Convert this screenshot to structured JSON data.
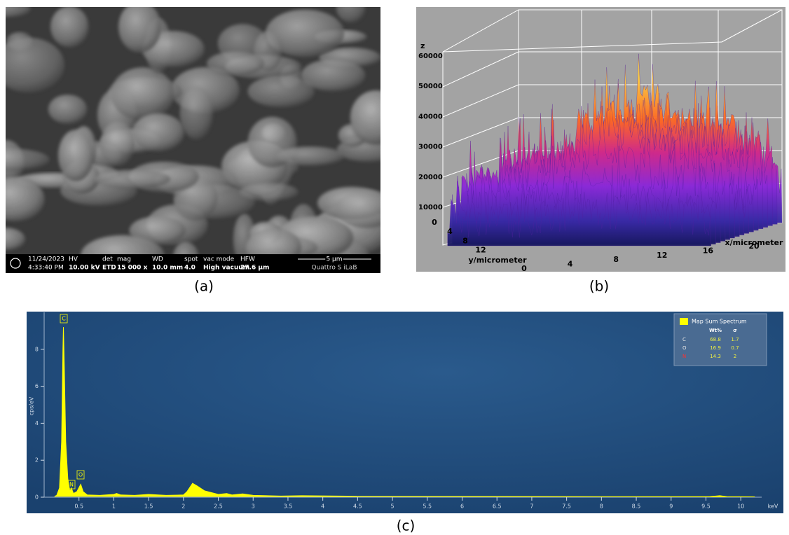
{
  "panel_labels": [
    "(a)",
    "(b)",
    "(c)"
  ],
  "sem": {
    "date": "11/24/2023",
    "time": "4:33:40 PM",
    "fields": [
      {
        "label": "HV",
        "value": "10.00 kV"
      },
      {
        "label": "det",
        "value": "ETD"
      },
      {
        "label": "mag",
        "value": "15 000 x"
      },
      {
        "label": "WD",
        "value": "10.0 mm"
      },
      {
        "label": "spot",
        "value": "4.0"
      },
      {
        "label": "vac mode",
        "value": "High vacuum"
      },
      {
        "label": "HFW",
        "value": "27.6 µm"
      }
    ],
    "scale_bar": "5 µm",
    "instrument": "Quattro S iLaB"
  },
  "surface": {
    "z_label": "z",
    "zticks": [
      10000,
      20000,
      30000,
      40000,
      50000,
      60000
    ],
    "y_label": "y/micrometer",
    "yticks": [
      0,
      4,
      8,
      12
    ],
    "x_label": "x/micrometer",
    "xticks": [
      0,
      4,
      8,
      12,
      16,
      20
    ]
  },
  "chart_data": {
    "type": "area",
    "y_label": "cps/eV",
    "x_unit": "keV",
    "color": "#ffff00",
    "x": [
      0.15,
      0.18,
      0.22,
      0.25,
      0.27,
      0.277,
      0.29,
      0.31,
      0.34,
      0.37,
      0.39,
      0.42,
      0.47,
      0.525,
      0.56,
      0.62,
      0.8,
      1.0,
      1.04,
      1.1,
      1.3,
      1.5,
      1.75,
      2.0,
      2.05,
      2.13,
      2.2,
      2.3,
      2.5,
      2.62,
      2.7,
      2.85,
      3.0,
      3.4,
      3.7,
      4.5,
      6.0,
      8.0,
      9.55,
      9.7,
      9.8,
      10.2
    ],
    "values": [
      0.05,
      0.1,
      0.5,
      3,
      8,
      9.2,
      7,
      3,
      1,
      0.3,
      0.5,
      0.2,
      0.3,
      0.7,
      0.3,
      0.12,
      0.1,
      0.15,
      0.2,
      0.12,
      0.1,
      0.15,
      0.1,
      0.12,
      0.3,
      0.75,
      0.6,
      0.35,
      0.15,
      0.2,
      0.12,
      0.18,
      0.1,
      0.06,
      0.08,
      0.05,
      0.04,
      0.03,
      0.03,
      0.08,
      0.03,
      0.02
    ],
    "xlim": [
      0,
      10.3
    ],
    "ylim": [
      0,
      10
    ],
    "xticks": [
      0.5,
      1,
      1.5,
      2,
      2.5,
      3,
      3.5,
      4,
      4.5,
      5,
      5.5,
      6,
      6.5,
      7,
      7.5,
      8,
      8.5,
      9,
      9.5,
      10
    ],
    "yticks": [
      0,
      2,
      4,
      6,
      8
    ],
    "peak_labels": [
      "C",
      "N",
      "O"
    ],
    "legend": {
      "title": "Map Sum Spectrum",
      "columns": [
        "Wt%",
        "σ"
      ],
      "rows": [
        {
          "element": "C",
          "wt": 68.8,
          "sigma": 1.7
        },
        {
          "element": "O",
          "wt": 16.9,
          "sigma": 0.7
        },
        {
          "element": "N",
          "wt": 14.3,
          "sigma": 2.0
        }
      ]
    }
  }
}
